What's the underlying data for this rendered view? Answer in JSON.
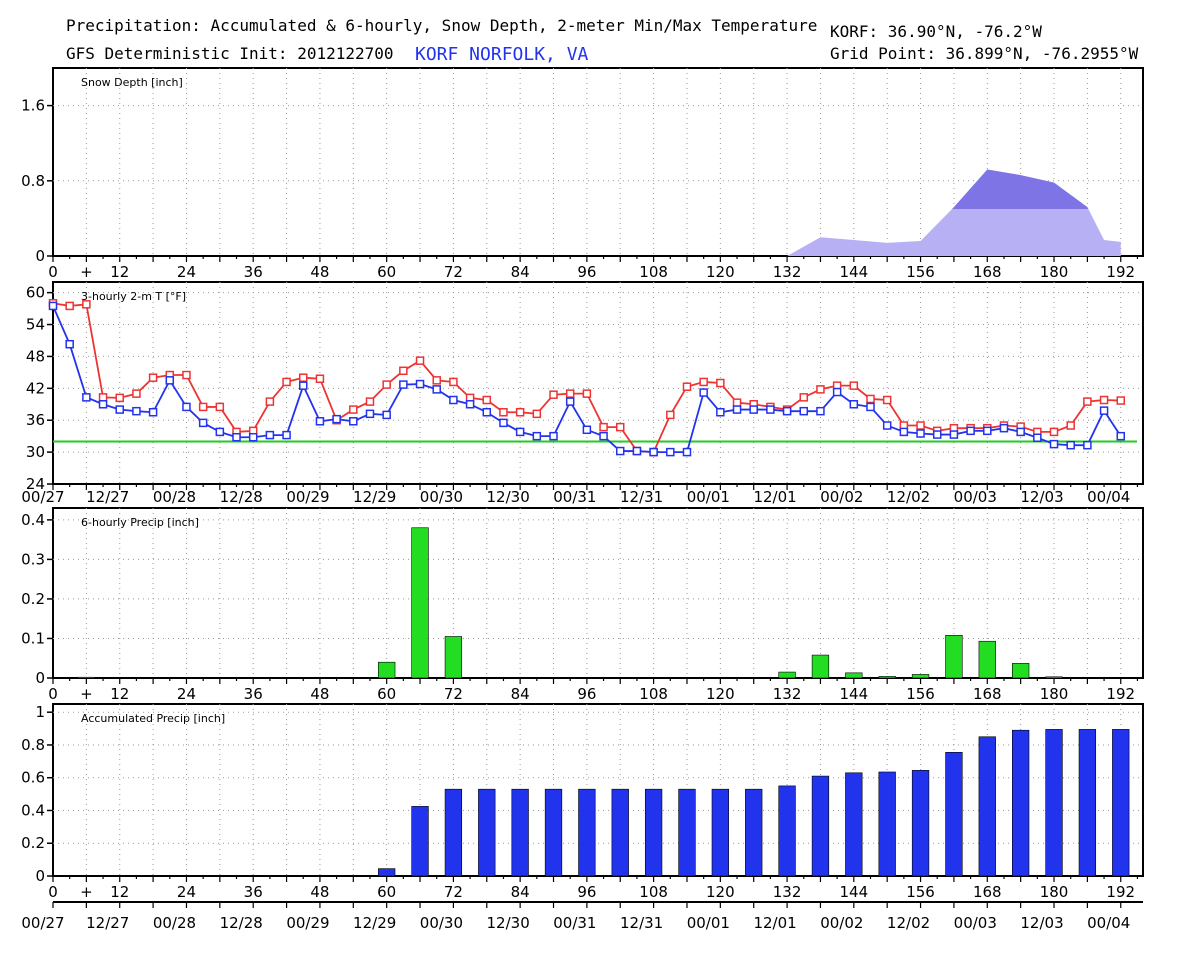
{
  "header": {
    "title": "Precipitation: Accumulated & 6-hourly, Snow Depth, 2-meter Min/Max Temperature",
    "init": "GFS Deterministic Init: 2012122700",
    "station": "KORF NORFOLK, VA",
    "location": "KORF: 36.90°N, -76.2°W",
    "grid_point": "Grid Point: 36.899°N, -76.2955°W"
  },
  "colors": {
    "snow_light": "#b8b0f5",
    "snow_dark": "#7f74e6",
    "temp_max": "#ee3333",
    "temp_min": "#2233ee",
    "freezing_line": "#22cc22",
    "precip_6h": "#22dd22",
    "precip_accum": "#2233ee"
  },
  "x_tick_labels": [
    "0",
    "+",
    "12",
    "24",
    "36",
    "48",
    "60",
    "72",
    "84",
    "96",
    "108",
    "120",
    "132",
    "144",
    "156",
    "168",
    "180",
    "192"
  ],
  "date_labels": [
    "00/27",
    "12/27",
    "00/28",
    "12/28",
    "00/29",
    "12/29",
    "00/30",
    "12/30",
    "00/31",
    "12/31",
    "00/01",
    "12/01",
    "00/02",
    "12/02",
    "00/03",
    "12/03",
    "00/04"
  ],
  "chart_data": [
    {
      "type": "area",
      "label": "Snow Depth [inch]",
      "ylim": [
        0,
        2.0
      ],
      "yticks": [
        "0",
        "0.8",
        "1.6"
      ],
      "ytick_values": [
        0,
        0.8,
        1.6
      ],
      "grid": true,
      "x": [
        132,
        138,
        144,
        150,
        156,
        162,
        168,
        174,
        180,
        186,
        189,
        192
      ],
      "values": [
        0,
        0.2,
        0.17,
        0.14,
        0.16,
        0.52,
        0.92,
        0.86,
        0.78,
        0.52,
        0.17,
        0.15
      ],
      "shaded_layer_max": 0.5
    },
    {
      "type": "line",
      "label": "3-hourly 2-m T [°F]",
      "ylim": [
        24,
        62
      ],
      "yticks": [
        "24",
        "30",
        "36",
        "42",
        "48",
        "54",
        "60"
      ],
      "ytick_values": [
        24,
        30,
        36,
        42,
        48,
        54,
        60
      ],
      "grid": true,
      "freezing_level": 32,
      "x": [
        0,
        3,
        6,
        9,
        12,
        15,
        18,
        21,
        24,
        27,
        30,
        33,
        36,
        39,
        42,
        45,
        48,
        51,
        54,
        57,
        60,
        63,
        66,
        69,
        72,
        75,
        78,
        81,
        84,
        87,
        90,
        93,
        96,
        99,
        102,
        105,
        108,
        111,
        114,
        117,
        120,
        123,
        126,
        129,
        132,
        135,
        138,
        141,
        144,
        147,
        150,
        153,
        156,
        159,
        162,
        165,
        168,
        171,
        174,
        177,
        180,
        183,
        186,
        189,
        192
      ],
      "series": [
        {
          "name": "max",
          "values": [
            58,
            57.5,
            57.8,
            40.3,
            40.2,
            41,
            44,
            44.5,
            44.5,
            38.5,
            38.5,
            33.8,
            34,
            39.5,
            43.2,
            44,
            43.8,
            36,
            38,
            39.5,
            42.7,
            45.3,
            47.2,
            43.5,
            43.2,
            40.2,
            39.8,
            37.5,
            37.5,
            37.2,
            40.8,
            41,
            41,
            34.7,
            34.7,
            30.2,
            30,
            37,
            42.3,
            43.2,
            43,
            39.3,
            39,
            38.5,
            38,
            40.3,
            41.8,
            42.5,
            42.5,
            40,
            39.8,
            35,
            35,
            34,
            34.5,
            34.5,
            34.5,
            35,
            34.8,
            33.8,
            33.8,
            35,
            39.5,
            39.8,
            39.7
          ]
        },
        {
          "name": "min",
          "values": [
            57.5,
            50.3,
            40.3,
            39,
            38,
            37.7,
            37.5,
            43.5,
            38.5,
            35.5,
            33.8,
            32.8,
            32.8,
            33.2,
            33.2,
            42.5,
            35.8,
            36.2,
            35.8,
            37.2,
            37,
            42.7,
            42.8,
            41.8,
            39.8,
            39,
            37.5,
            35.5,
            33.8,
            33,
            33,
            39.5,
            34.2,
            33,
            30.2,
            30.2,
            30,
            30,
            30,
            41.2,
            37.5,
            38,
            38,
            38,
            37.7,
            37.7,
            37.7,
            41.3,
            39,
            38.5,
            35,
            33.8,
            33.5,
            33.3,
            33.3,
            34,
            34,
            34.5,
            33.8,
            32.7,
            31.5,
            31.3,
            31.3,
            37.8,
            33
          ]
        }
      ]
    },
    {
      "type": "bar",
      "label": "6-hourly Precip [inch]",
      "ylim": [
        0,
        0.43
      ],
      "yticks": [
        "0",
        "0.1",
        "0.2",
        "0.3",
        "0.4"
      ],
      "ytick_values": [
        0,
        0.1,
        0.2,
        0.3,
        0.4
      ],
      "grid": true,
      "x": [
        6,
        60,
        66,
        72,
        132,
        138,
        144,
        150,
        156,
        162,
        168,
        174,
        180
      ],
      "values": [
        0.002,
        0.04,
        0.38,
        0.105,
        0.015,
        0.058,
        0.013,
        0.004,
        0.009,
        0.108,
        0.093,
        0.037,
        0.003
      ]
    },
    {
      "type": "bar",
      "label": "Accumulated Precip [inch]",
      "ylim": [
        0,
        1.05
      ],
      "yticks": [
        "0",
        "0.2",
        "0.4",
        "0.6",
        "0.8",
        "1"
      ],
      "ytick_values": [
        0,
        0.2,
        0.4,
        0.6,
        0.8,
        1.0
      ],
      "grid": true,
      "x": [
        60,
        66,
        72,
        78,
        84,
        90,
        96,
        102,
        108,
        114,
        120,
        126,
        132,
        138,
        144,
        150,
        156,
        162,
        168,
        174,
        180,
        186,
        192
      ],
      "values": [
        0.045,
        0.425,
        0.53,
        0.53,
        0.53,
        0.53,
        0.53,
        0.53,
        0.53,
        0.53,
        0.53,
        0.53,
        0.55,
        0.61,
        0.63,
        0.635,
        0.645,
        0.755,
        0.85,
        0.89,
        0.895,
        0.895,
        0.895
      ]
    }
  ]
}
